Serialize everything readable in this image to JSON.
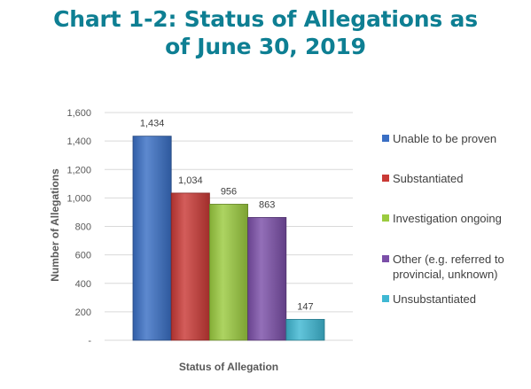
{
  "title": {
    "line1": "Chart 1-2: Status of Allegations as",
    "line2": "of June 30, 2019"
  },
  "chart_data": {
    "type": "bar",
    "title": "Chart 1-2: Status of Allegations as of June 30, 2019",
    "xlabel": "Status of Allegation",
    "ylabel": "Number of Allegations",
    "ylim": [
      0,
      1600
    ],
    "yticks": [
      "-",
      "200",
      "400",
      "600",
      "800",
      "1,000",
      "1,200",
      "1,400",
      "1,600"
    ],
    "grid": true,
    "legend_position": "right",
    "series": [
      {
        "name": "Unable to be proven",
        "value": 1434,
        "label": "1,434",
        "color": "#3a6fc4"
      },
      {
        "name": "Substantiated",
        "value": 1034,
        "label": "1,034",
        "color": "#c93a36"
      },
      {
        "name": "Investigation ongoing",
        "value": 956,
        "label": "956",
        "color": "#9bcb3f"
      },
      {
        "name": "Other (e.g. referred to provincial, unknown)",
        "value": 863,
        "label": "863",
        "color": "#7b4fa8"
      },
      {
        "name": "Unsubstantiated",
        "value": 147,
        "label": "147",
        "color": "#3fb8d3"
      }
    ]
  }
}
